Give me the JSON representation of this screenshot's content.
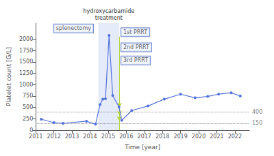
{
  "chart_data": {
    "type": "line",
    "title": "hydroxycarbamide\ntreatment",
    "x_label": "Time [year]",
    "y_label": "Platelet count [G/L]",
    "x": [
      2011.3,
      2012.0,
      2012.5,
      2013.8,
      2014.3,
      2014.55,
      2014.7,
      2014.85,
      2015.05,
      2015.25,
      2015.6,
      2015.75,
      2016.3,
      2017.2,
      2018.1,
      2019.0,
      2019.8,
      2020.5,
      2021.1,
      2021.8,
      2022.3
    ],
    "values": [
      240,
      165,
      150,
      195,
      130,
      560,
      680,
      690,
      2080,
      760,
      510,
      215,
      430,
      530,
      680,
      790,
      710,
      740,
      790,
      820,
      750
    ],
    "marker": "circle",
    "xlim": [
      2011.0,
      2022.8
    ],
    "xticks": [
      2011,
      2012,
      2013,
      2014,
      2015,
      2016,
      2017,
      2018,
      2019,
      2020,
      2021,
      2022
    ],
    "ylim": [
      0,
      2350
    ],
    "yticks": [
      0,
      250,
      500,
      750,
      1000,
      1250,
      1500,
      1750,
      2000
    ],
    "grid": false,
    "shade": [
      2014.45,
      2015.62
    ],
    "hlines": [
      400,
      150
    ],
    "annotations": [
      {
        "text": "splenectomy",
        "x": 2012.0,
        "y": 2232.5
      },
      {
        "text": "1st PRRT",
        "x": 2015.72,
        "y": 2150
      },
      {
        "text": "2nd PRRT",
        "x": 2015.72,
        "y": 1820
      },
      {
        "text": "3rd PRRT",
        "x": 2015.72,
        "y": 1530
      }
    ],
    "arrows": [
      {
        "x": 2015.62,
        "from": 2050,
        "to": 510
      },
      {
        "x": 2015.62,
        "from": 1720,
        "to": 330
      },
      {
        "x": 2015.62,
        "from": 1430,
        "to": 215
      }
    ]
  }
}
